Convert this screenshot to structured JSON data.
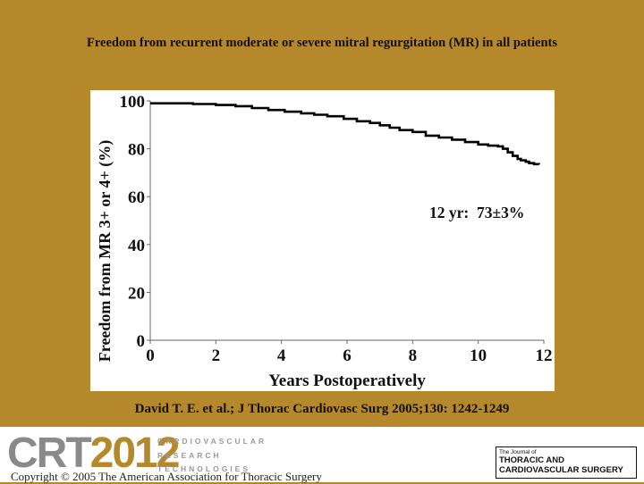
{
  "slide": {
    "title": "Freedom from recurrent moderate or severe mitral regurgitation (MR) in all patients",
    "citation": "David  T. E. et al.; J Thorac Cardiovasc Surg 2005;130: 1242-1249",
    "copyright": "Copyright © 2005 The American Association for Thoracic Surgery"
  },
  "footer": {
    "crt_logo": {
      "crt": "CRT",
      "year": "2012"
    },
    "crt_subtitle": [
      "CARDIOVASCULAR",
      "RESEARCH",
      "TECHNOLOGIES"
    ],
    "journal_logo": {
      "line1": "The Journal of",
      "line2": "THORACIC AND",
      "line3": "CARDIOVASCULAR SURGERY"
    }
  },
  "colors": {
    "background": "#b5892b",
    "panel": "#ffffff",
    "curve": "#000000"
  },
  "chart_data": {
    "type": "line",
    "xlabel": "Years Postoperatively",
    "ylabel": "Freedom from  MR 3+ or 4+ (%)",
    "xlim": [
      0,
      12
    ],
    "ylim": [
      0,
      100
    ],
    "xticks": [
      0,
      2,
      4,
      6,
      8,
      10,
      12
    ],
    "yticks": [
      0,
      20,
      40,
      60,
      80,
      100
    ],
    "grid": false,
    "annotation": "12 yr:  73±3%",
    "series": [
      {
        "x": [
          0,
          0.1,
          0.6,
          1.3,
          2.0,
          2.6,
          3.1,
          3.6,
          4.1,
          4.6,
          5.0,
          5.4,
          5.9,
          6.3,
          6.7,
          7.0,
          7.3,
          7.6,
          8.0,
          8.4,
          8.8,
          9.2,
          9.6,
          10.0,
          10.3,
          10.6,
          10.75,
          10.9,
          11.05,
          11.2,
          11.3,
          11.45,
          11.55,
          11.7,
          11.85
        ],
        "y": [
          99,
          99,
          99,
          98.7,
          98.3,
          97.8,
          97,
          96.2,
          95.5,
          94.8,
          94.2,
          93.6,
          92.5,
          91.5,
          90.8,
          89.8,
          88.8,
          87.8,
          87,
          85.5,
          84.7,
          83.8,
          82.8,
          81.8,
          81.3,
          81,
          80,
          78.5,
          77,
          75.8,
          75.2,
          74.6,
          74,
          73.6,
          73.4
        ]
      }
    ]
  }
}
